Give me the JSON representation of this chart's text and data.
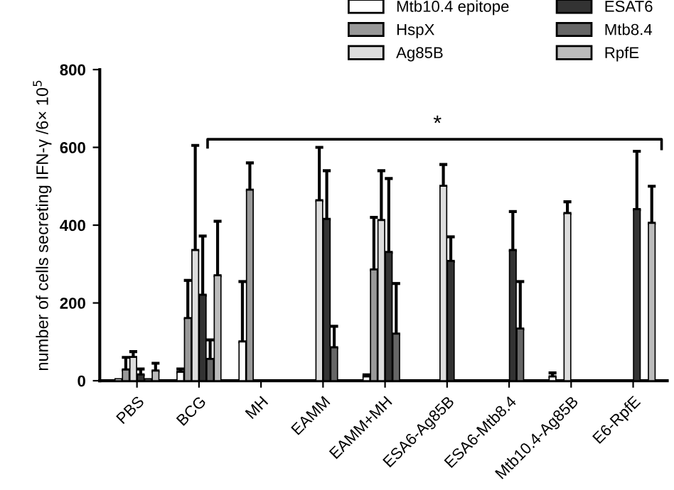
{
  "chart_data": {
    "type": "bar",
    "categories": [
      "PBS",
      "BCG",
      "MH",
      "EAMM",
      "EAMM+MH",
      "ESA6-Ag85B",
      "ESA6-Mtb8.4",
      "Mtb10.4-Ag85B",
      "E6-RpfE"
    ],
    "ylabel": "number of cells secreting IFN-γ /6× 10$^{5}$",
    "ylim": [
      0,
      800
    ],
    "yticks": [
      0,
      200,
      400,
      600,
      800
    ],
    "legend": "top right",
    "grid": false,
    "annotations": [
      "*"
    ],
    "series": [
      {
        "name": "Mtb10.4 epitope",
        "color": "#ffffff",
        "values": [
          5,
          22,
          100,
          null,
          10,
          null,
          null,
          10,
          null
        ],
        "errors": [
          null,
          [
            22,
            30
          ],
          [
            100,
            255
          ],
          null,
          [
            10,
            15
          ],
          null,
          null,
          [
            10,
            20
          ],
          null
        ]
      },
      {
        "name": "HspX",
        "color": "#999999",
        "values": [
          28,
          160,
          490,
          null,
          285,
          null,
          null,
          null,
          null
        ],
        "errors": [
          [
            28,
            60
          ],
          [
            160,
            258
          ],
          [
            490,
            560
          ],
          null,
          [
            285,
            420
          ],
          null,
          null,
          null,
          null
        ]
      },
      {
        "name": "Ag85B",
        "color": "#dddddd",
        "values": [
          60,
          335,
          null,
          463,
          412,
          500,
          null,
          430,
          null
        ],
        "errors": [
          [
            60,
            75
          ],
          [
            335,
            605
          ],
          null,
          [
            463,
            600
          ],
          [
            412,
            540
          ],
          [
            500,
            556
          ],
          null,
          [
            430,
            460
          ],
          null
        ]
      },
      {
        "name": "ESAT6",
        "color": "#333333",
        "values": [
          15,
          220,
          null,
          415,
          330,
          307,
          335,
          null,
          440
        ],
        "errors": [
          [
            15,
            30
          ],
          [
            220,
            372
          ],
          null,
          [
            415,
            540
          ],
          [
            330,
            520
          ],
          [
            307,
            370
          ],
          [
            335,
            435
          ],
          null,
          [
            440,
            590
          ]
        ]
      },
      {
        "name": "Mtb8.4",
        "color": "#666666",
        "values": [
          5,
          55,
          null,
          85,
          120,
          null,
          133,
          null,
          null
        ],
        "errors": [
          null,
          [
            55,
            105
          ],
          null,
          [
            85,
            140
          ],
          [
            120,
            250
          ],
          null,
          [
            133,
            255
          ],
          null,
          null
        ]
      },
      {
        "name": "RpfE",
        "color": "#bbbbbb",
        "values": [
          25,
          270,
          null,
          null,
          null,
          null,
          null,
          null,
          405
        ],
        "errors": [
          [
            25,
            45
          ],
          [
            270,
            410
          ],
          null,
          null,
          null,
          null,
          null,
          null,
          [
            405,
            500
          ]
        ]
      }
    ]
  }
}
